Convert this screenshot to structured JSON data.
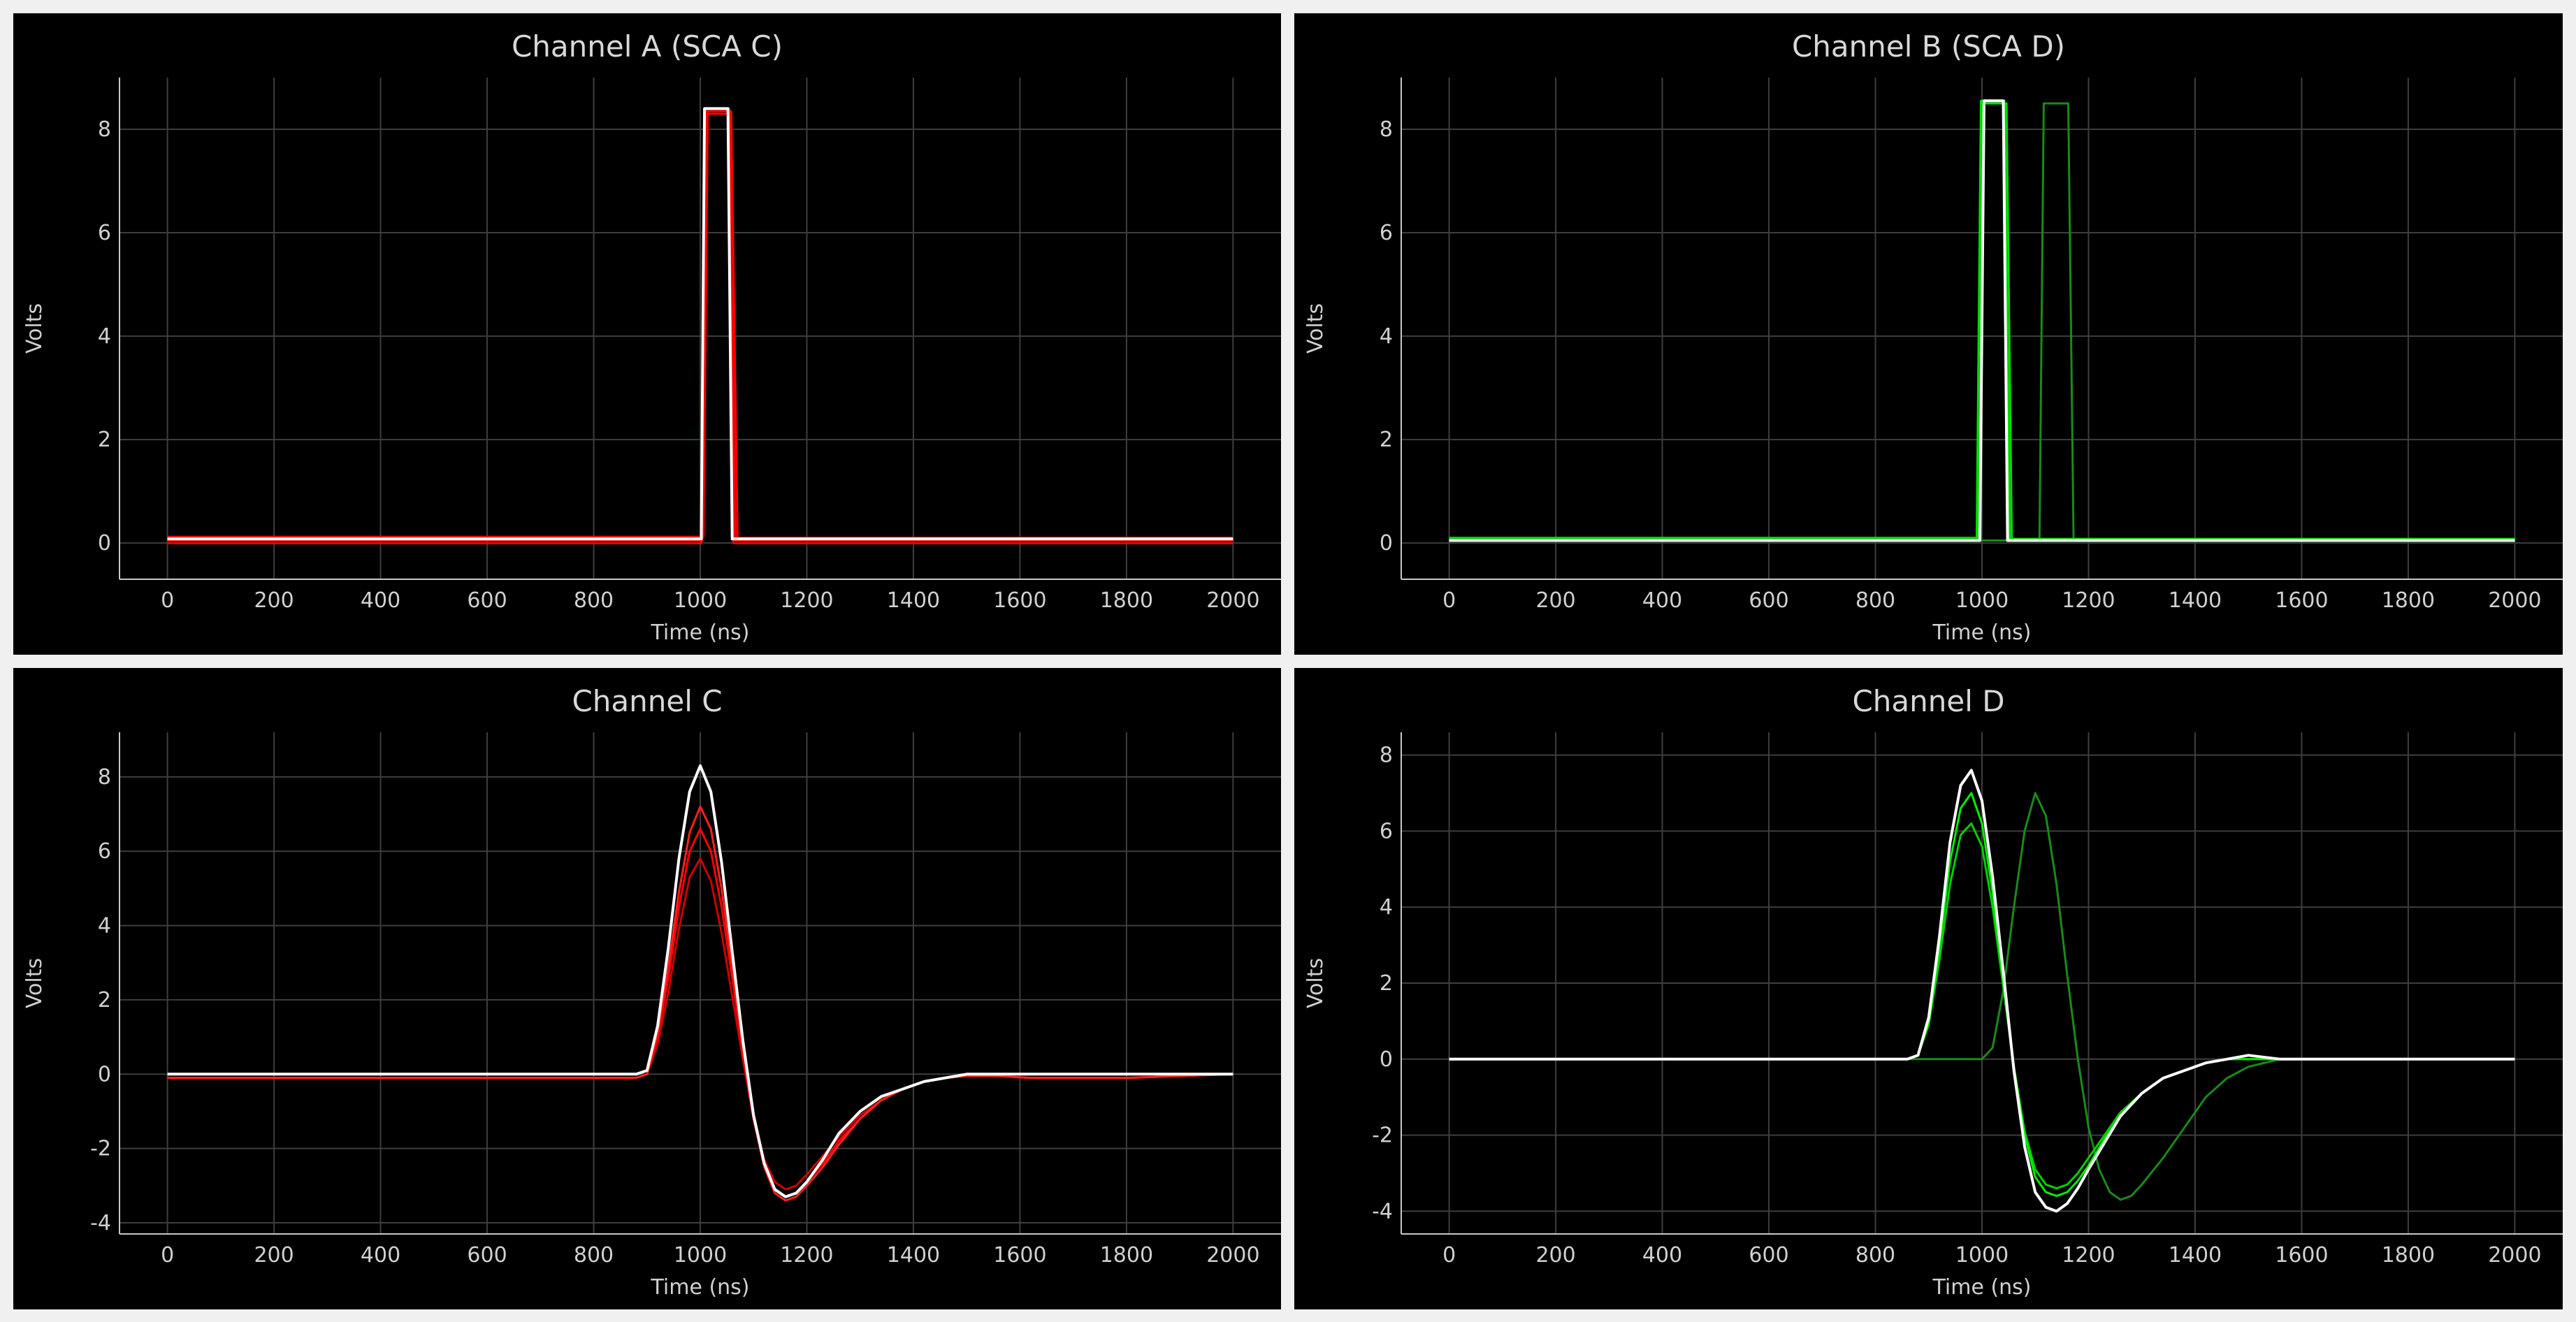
{
  "chart_data": [
    {
      "id": "a",
      "type": "line",
      "title": "Channel A (SCA C)",
      "xlabel": "Time (ns)",
      "ylabel": "Volts",
      "xlim": [
        -90,
        2090
      ],
      "ylim": [
        -0.7,
        9.0
      ],
      "xticks": [
        0,
        200,
        400,
        600,
        800,
        1000,
        1200,
        1400,
        1600,
        1800,
        2000
      ],
      "yticks": [
        0,
        2,
        4,
        6,
        8
      ],
      "grid": true,
      "colors": {
        "traces": "#ff0000",
        "highlight": "#ffffff"
      },
      "series": [
        {
          "color": "#ff0000",
          "x": [
            0,
            1004,
            1012,
            1054,
            1066,
            2000
          ],
          "y": [
            0.05,
            0.05,
            8.4,
            8.4,
            0.05,
            0.05
          ]
        },
        {
          "color": "#ff0000",
          "x": [
            0,
            1006,
            1014,
            1058,
            1070,
            2000
          ],
          "y": [
            0.12,
            0.12,
            8.35,
            8.35,
            0.1,
            0.1
          ]
        },
        {
          "color": "#ff0000",
          "x": [
            0,
            1002,
            1010,
            1052,
            1062,
            2000
          ],
          "y": [
            0.0,
            0.0,
            8.3,
            8.3,
            0.0,
            0.0
          ]
        },
        {
          "color": "#ffffff",
          "x": [
            0,
            1002,
            1008,
            1052,
            1060,
            2000
          ],
          "y": [
            0.08,
            0.08,
            8.4,
            8.4,
            0.08,
            0.08
          ]
        }
      ]
    },
    {
      "id": "b",
      "type": "line",
      "title": "Channel B (SCA D)",
      "xlabel": "Time (ns)",
      "ylabel": "Volts",
      "xlim": [
        -90,
        2090
      ],
      "ylim": [
        -0.7,
        9.0
      ],
      "xticks": [
        0,
        200,
        400,
        600,
        800,
        1000,
        1200,
        1400,
        1600,
        1800,
        2000
      ],
      "yticks": [
        0,
        2,
        4,
        6,
        8
      ],
      "grid": true,
      "colors": {
        "traces": "#00cc00",
        "highlight": "#ffffff"
      },
      "series": [
        {
          "color": "#1a8a1a",
          "x": [
            0,
            1108,
            1116,
            1162,
            1172,
            2000
          ],
          "y": [
            0.05,
            0.05,
            8.5,
            8.5,
            0.05,
            0.05
          ]
        },
        {
          "color": "#00e000",
          "x": [
            0,
            990,
            998,
            1042,
            1052,
            2000
          ],
          "y": [
            0.05,
            0.05,
            8.55,
            8.55,
            0.05,
            0.05
          ]
        },
        {
          "color": "#00e000",
          "x": [
            0,
            994,
            1002,
            1046,
            1056,
            2000
          ],
          "y": [
            0.1,
            0.1,
            8.5,
            8.5,
            0.08,
            0.08
          ]
        },
        {
          "color": "#ffffff",
          "x": [
            0,
            996,
            1004,
            1040,
            1048,
            2000
          ],
          "y": [
            0.05,
            0.05,
            8.55,
            8.55,
            0.05,
            0.05
          ]
        }
      ]
    },
    {
      "id": "c",
      "type": "line",
      "title": "Channel C",
      "xlabel": "Time (ns)",
      "ylabel": "Volts",
      "xlim": [
        -90,
        2090
      ],
      "ylim": [
        -4.3,
        9.2
      ],
      "xticks": [
        0,
        200,
        400,
        600,
        800,
        1000,
        1200,
        1400,
        1600,
        1800,
        2000
      ],
      "yticks": [
        -4,
        -2,
        0,
        2,
        4,
        6,
        8
      ],
      "grid": true,
      "colors": {
        "traces": "#ff0000",
        "highlight": "#ffffff"
      },
      "series": [
        {
          "color": "#cc0000",
          "x": [
            0,
            880,
            900,
            920,
            940,
            960,
            980,
            1000,
            1020,
            1040,
            1060,
            1080,
            1100,
            1120,
            1140,
            1160,
            1180,
            1200,
            1230,
            1260,
            1300,
            1340,
            1380,
            1420,
            1460,
            1500,
            1560,
            1620,
            1700,
            1800,
            2000
          ],
          "y": [
            -0.1,
            -0.1,
            0,
            0.8,
            2.2,
            3.9,
            5.3,
            5.8,
            5.2,
            3.8,
            2.1,
            0.4,
            -1.2,
            -2.3,
            -2.9,
            -3.1,
            -3.0,
            -2.7,
            -2.2,
            -1.7,
            -1.1,
            -0.7,
            -0.4,
            -0.2,
            -0.1,
            -0.05,
            -0.05,
            -0.1,
            -0.1,
            -0.1,
            0
          ]
        },
        {
          "color": "#ff0000",
          "x": [
            0,
            880,
            900,
            920,
            940,
            960,
            980,
            1000,
            1020,
            1040,
            1060,
            1080,
            1100,
            1120,
            1140,
            1160,
            1180,
            1200,
            1230,
            1260,
            1300,
            1340,
            1380,
            1420,
            1460,
            1500,
            1560,
            1620,
            1700,
            1800,
            2000
          ],
          "y": [
            -0.1,
            -0.1,
            0,
            1.0,
            2.6,
            4.5,
            6.0,
            6.6,
            6.0,
            4.5,
            2.6,
            0.6,
            -1.2,
            -2.4,
            -3.1,
            -3.3,
            -3.2,
            -2.9,
            -2.4,
            -1.8,
            -1.2,
            -0.7,
            -0.4,
            -0.2,
            -0.1,
            -0.05,
            -0.05,
            -0.1,
            -0.1,
            -0.1,
            0
          ]
        },
        {
          "color": "#ff2020",
          "x": [
            0,
            880,
            900,
            920,
            940,
            960,
            980,
            1000,
            1020,
            1040,
            1060,
            1080,
            1100,
            1120,
            1140,
            1160,
            1180,
            1200,
            1230,
            1260,
            1300,
            1340,
            1380,
            1420,
            1460,
            1500,
            1560,
            1620,
            1700,
            1800,
            2000
          ],
          "y": [
            -0.1,
            -0.1,
            0,
            1.1,
            2.9,
            4.9,
            6.5,
            7.2,
            6.6,
            5.0,
            2.9,
            0.7,
            -1.2,
            -2.5,
            -3.2,
            -3.4,
            -3.3,
            -3.0,
            -2.5,
            -1.9,
            -1.2,
            -0.7,
            -0.4,
            -0.2,
            -0.1,
            -0.05,
            -0.05,
            -0.1,
            -0.1,
            -0.1,
            0
          ]
        },
        {
          "color": "#ffffff",
          "x": [
            0,
            880,
            900,
            920,
            940,
            960,
            980,
            1000,
            1020,
            1040,
            1060,
            1080,
            1100,
            1120,
            1140,
            1160,
            1180,
            1200,
            1230,
            1260,
            1300,
            1340,
            1380,
            1420,
            1460,
            1500,
            1560,
            1620,
            1700,
            1800,
            2000
          ],
          "y": [
            0,
            0,
            0.1,
            1.3,
            3.4,
            5.8,
            7.6,
            8.3,
            7.6,
            5.7,
            3.3,
            0.9,
            -1.1,
            -2.4,
            -3.1,
            -3.3,
            -3.2,
            -2.9,
            -2.3,
            -1.6,
            -1.0,
            -0.6,
            -0.4,
            -0.2,
            -0.1,
            0,
            0,
            0,
            0,
            0,
            0
          ]
        }
      ]
    },
    {
      "id": "d",
      "type": "line",
      "title": "Channel D",
      "xlabel": "Time (ns)",
      "ylabel": "Volts",
      "xlim": [
        -90,
        2090
      ],
      "ylim": [
        -4.6,
        8.6
      ],
      "xticks": [
        0,
        200,
        400,
        600,
        800,
        1000,
        1200,
        1400,
        1600,
        1800,
        2000
      ],
      "yticks": [
        -4,
        -2,
        0,
        2,
        4,
        6,
        8
      ],
      "grid": true,
      "colors": {
        "traces": "#00cc00",
        "highlight": "#ffffff"
      },
      "series": [
        {
          "color": "#1a8a1a",
          "x": [
            0,
            1000,
            1020,
            1040,
            1060,
            1080,
            1100,
            1120,
            1140,
            1160,
            1180,
            1200,
            1220,
            1240,
            1260,
            1280,
            1300,
            1340,
            1380,
            1420,
            1460,
            1500,
            1560,
            1600,
            2000
          ],
          "y": [
            0,
            0,
            0.3,
            1.8,
            4.0,
            6.0,
            7.0,
            6.4,
            4.6,
            2.2,
            0,
            -1.8,
            -2.9,
            -3.5,
            -3.7,
            -3.6,
            -3.3,
            -2.6,
            -1.8,
            -1.0,
            -0.5,
            -0.2,
            0,
            0,
            0
          ]
        },
        {
          "color": "#00d000",
          "x": [
            0,
            860,
            880,
            900,
            920,
            940,
            960,
            980,
            1000,
            1020,
            1040,
            1060,
            1080,
            1100,
            1120,
            1140,
            1160,
            1180,
            1200,
            1230,
            1260,
            1300,
            1340,
            1380,
            1420,
            1460,
            1500,
            1560,
            1620,
            2000
          ],
          "y": [
            0,
            0,
            0.1,
            0.9,
            2.6,
            4.6,
            5.9,
            6.2,
            5.6,
            4.0,
            1.9,
            -0.2,
            -1.9,
            -2.9,
            -3.3,
            -3.4,
            -3.3,
            -3.0,
            -2.6,
            -2.0,
            -1.4,
            -0.9,
            -0.5,
            -0.3,
            -0.1,
            0,
            0,
            0,
            0,
            0
          ]
        },
        {
          "color": "#00ee00",
          "x": [
            0,
            860,
            880,
            900,
            920,
            940,
            960,
            980,
            1000,
            1020,
            1040,
            1060,
            1080,
            1100,
            1120,
            1140,
            1160,
            1180,
            1200,
            1230,
            1260,
            1300,
            1340,
            1380,
            1420,
            1460,
            1500,
            1560,
            1620,
            2000
          ],
          "y": [
            0,
            0,
            0.1,
            1.0,
            2.9,
            5.2,
            6.6,
            7.0,
            6.2,
            4.4,
            2.1,
            -0.2,
            -2.0,
            -3.1,
            -3.5,
            -3.6,
            -3.5,
            -3.2,
            -2.8,
            -2.1,
            -1.5,
            -0.9,
            -0.5,
            -0.3,
            -0.1,
            0,
            0,
            0,
            0,
            0
          ]
        },
        {
          "color": "#ffffff",
          "x": [
            0,
            860,
            880,
            900,
            920,
            940,
            960,
            980,
            1000,
            1020,
            1040,
            1060,
            1080,
            1100,
            1120,
            1140,
            1160,
            1180,
            1200,
            1230,
            1260,
            1300,
            1340,
            1380,
            1420,
            1460,
            1500,
            1560,
            1620,
            2000
          ],
          "y": [
            0,
            0,
            0.1,
            1.1,
            3.2,
            5.7,
            7.2,
            7.6,
            6.8,
            4.8,
            2.3,
            -0.3,
            -2.3,
            -3.5,
            -3.9,
            -4.0,
            -3.8,
            -3.4,
            -2.9,
            -2.2,
            -1.5,
            -0.9,
            -0.5,
            -0.3,
            -0.1,
            0,
            0.1,
            0,
            0,
            0
          ]
        }
      ]
    }
  ]
}
